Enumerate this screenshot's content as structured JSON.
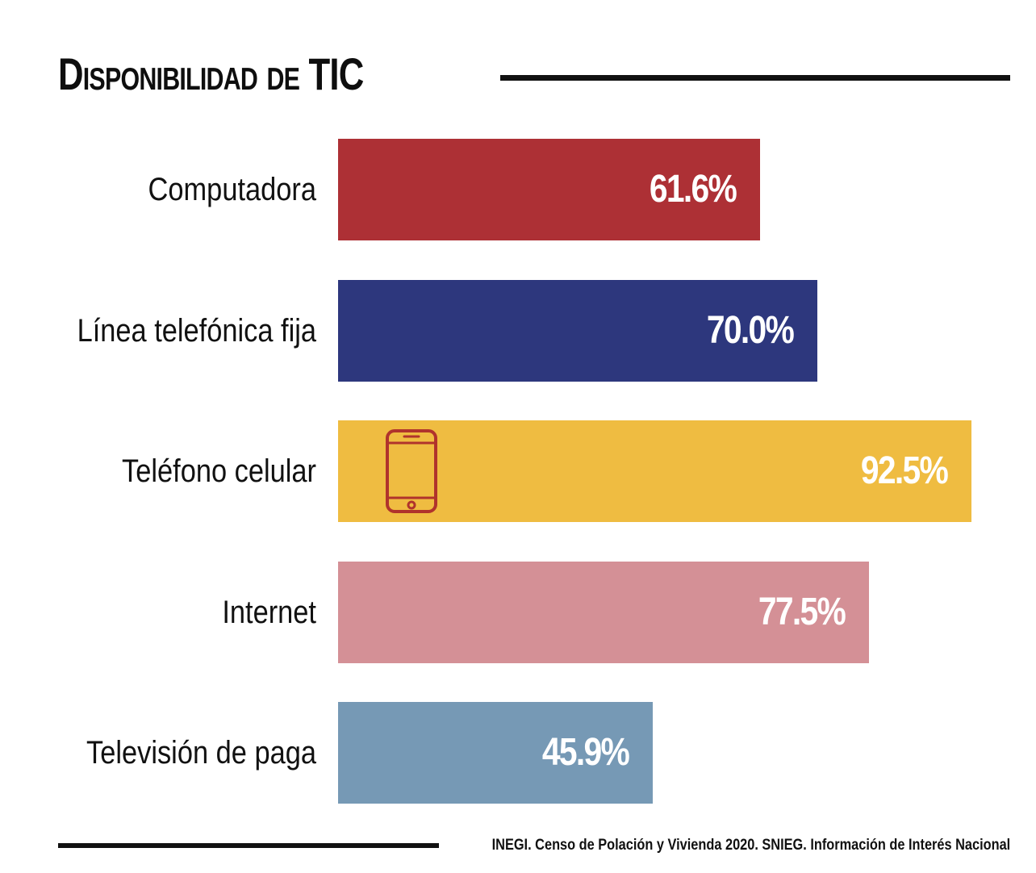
{
  "header": {
    "title": "Disponibilidad de TIC"
  },
  "chart_data": {
    "type": "bar",
    "orientation": "horizontal",
    "title": "Disponibilidad de TIC",
    "categories": [
      "Computadora",
      "Línea telefónica fija",
      "Teléfono celular",
      "Internet",
      "Televisión de paga"
    ],
    "values": [
      61.6,
      70.0,
      92.5,
      77.5,
      45.9
    ],
    "value_labels": [
      "61.6%",
      "70.0%",
      "92.5%",
      "77.5%",
      "45.9%"
    ],
    "colors": [
      "#ad3035",
      "#2d377d",
      "#efbc41",
      "#d49096",
      "#7699b5"
    ],
    "xlim": [
      0,
      100
    ],
    "grid": false,
    "legend": "none",
    "icons": {
      "Teléfono celular": "smartphone-icon"
    },
    "icon_color": "#b0332c"
  },
  "footer": {
    "source": "INEGI. Censo de Polación y Vivienda 2020. SNIEG. Información de Interés Nacional"
  }
}
